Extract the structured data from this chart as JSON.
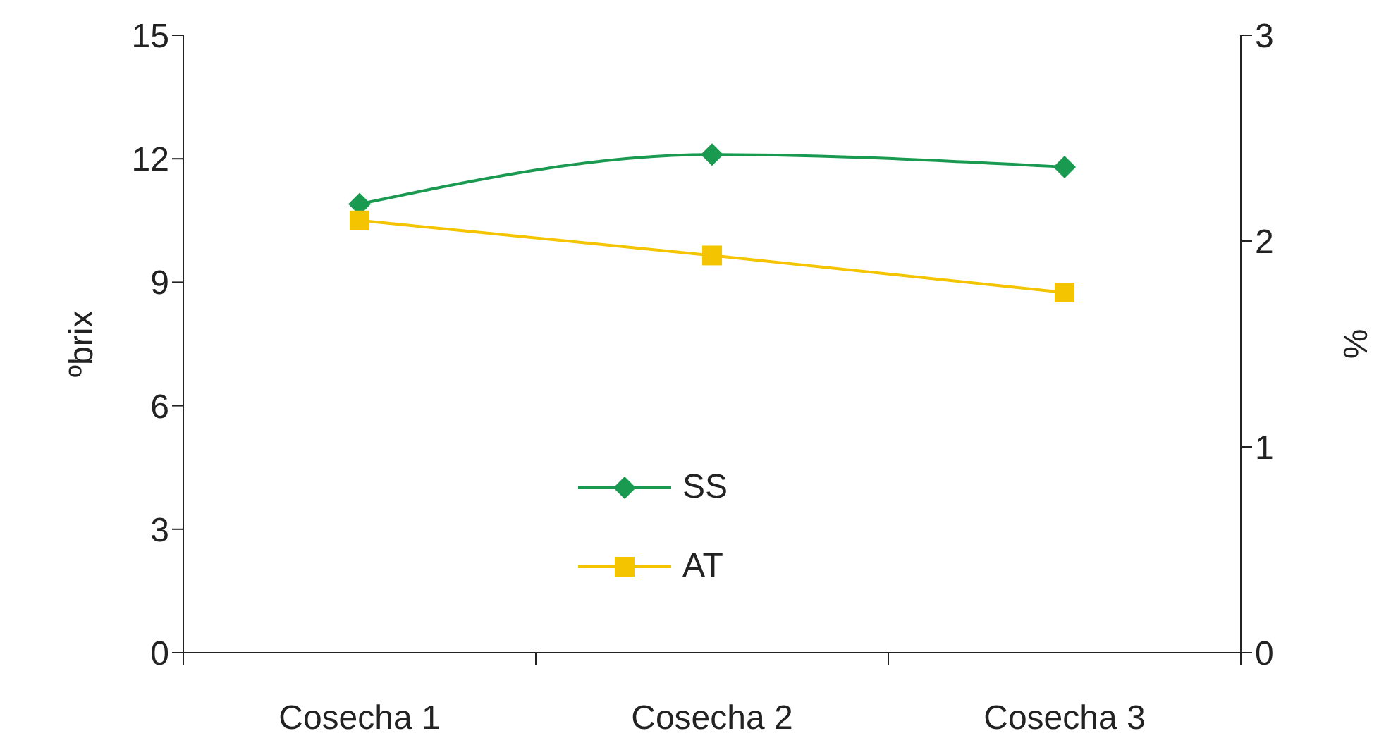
{
  "chart_data": {
    "type": "line",
    "categories": [
      "Cosecha 1",
      "Cosecha 2",
      "Cosecha 3"
    ],
    "ylabel": "ºbrix",
    "y2label": "%",
    "ylim": [
      0,
      15
    ],
    "yticks": [
      0,
      3,
      6,
      9,
      12,
      15
    ],
    "y2lim": [
      0,
      3
    ],
    "y2ticks": [
      0,
      1,
      2,
      3
    ],
    "legend": "bottom",
    "grid": false,
    "series": [
      {
        "name": "SS",
        "color": "#1a9a50",
        "values": [
          10.9,
          12.1,
          11.8
        ],
        "marker": "diamond",
        "axis": "y"
      },
      {
        "name": "AT",
        "color": "#f5c400",
        "values": [
          2.1,
          1.93,
          1.75
        ],
        "marker": "square",
        "axis": "y2"
      }
    ]
  }
}
